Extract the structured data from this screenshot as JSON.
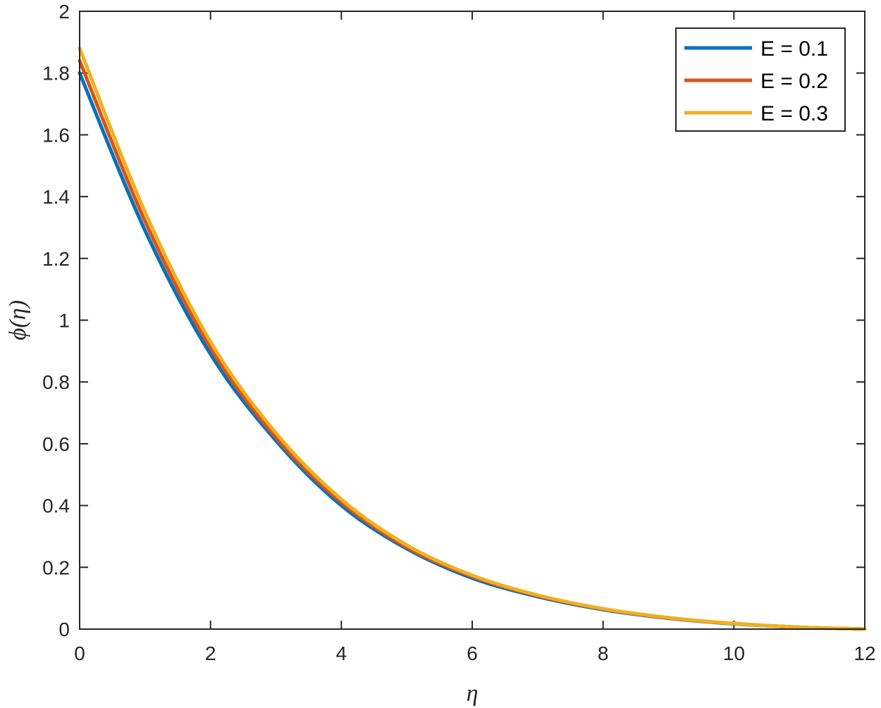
{
  "chart_data": {
    "type": "line",
    "title": "",
    "xlabel": "η",
    "ylabel": "ϕ(η)",
    "xlim": [
      0,
      12
    ],
    "ylim": [
      0,
      2
    ],
    "x_ticks": [
      "0",
      "2",
      "4",
      "6",
      "8",
      "10",
      "12"
    ],
    "y_ticks": [
      "0",
      "0.2",
      "0.4",
      "0.6",
      "0.8",
      "1",
      "1.2",
      "1.4",
      "1.6",
      "1.8",
      "2"
    ],
    "grid": false,
    "legend_position": "top-right",
    "x": [
      0,
      1,
      2,
      3,
      4,
      5,
      6,
      7,
      8,
      9,
      10,
      11,
      12
    ],
    "series": [
      {
        "name": "E = 0.1",
        "color": "#0072BD",
        "values": [
          1.8,
          1.29,
          0.89,
          0.61,
          0.4,
          0.26,
          0.165,
          0.105,
          0.063,
          0.035,
          0.017,
          0.006,
          0.0
        ]
      },
      {
        "name": "E = 0.2",
        "color": "#D95319",
        "values": [
          1.84,
          1.32,
          0.91,
          0.62,
          0.41,
          0.265,
          0.17,
          0.108,
          0.065,
          0.036,
          0.018,
          0.006,
          0.0
        ]
      },
      {
        "name": "E = 0.3",
        "color": "#EDB120",
        "values": [
          1.88,
          1.35,
          0.93,
          0.635,
          0.42,
          0.272,
          0.174,
          0.11,
          0.066,
          0.037,
          0.018,
          0.006,
          0.0
        ]
      }
    ]
  }
}
